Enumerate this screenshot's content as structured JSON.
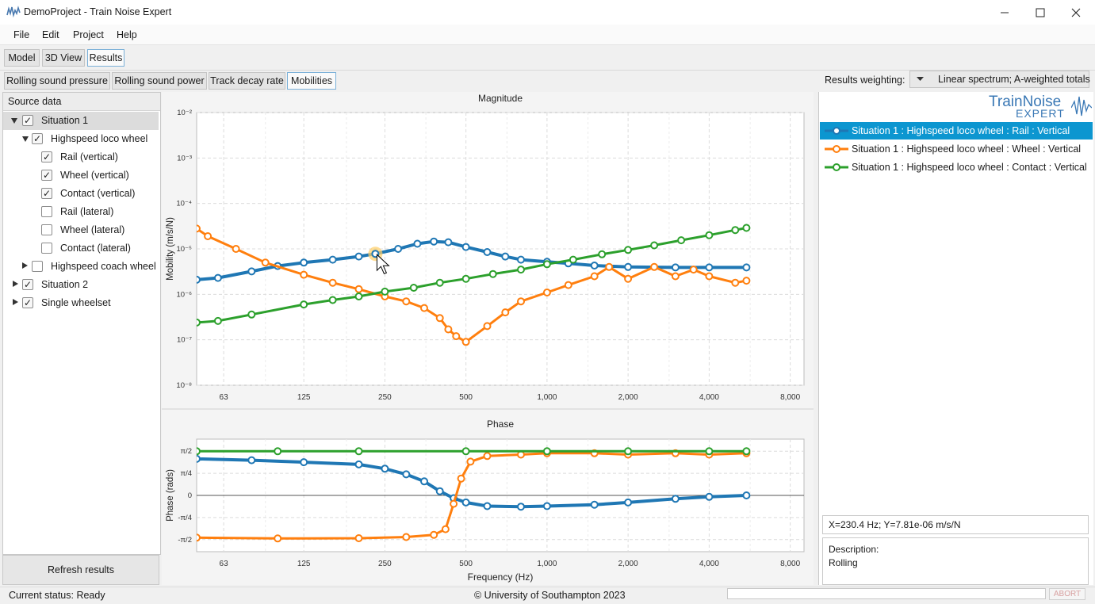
{
  "window": {
    "title": "DemoProject - Train Noise Expert",
    "minimize_icon": "minimize-icon",
    "maximize_icon": "maximize-icon",
    "close_icon": "close-icon"
  },
  "menu": {
    "items": [
      "File",
      "Edit",
      "Project",
      "Help"
    ]
  },
  "main_tabs": [
    {
      "label": "Model"
    },
    {
      "label": "3D View"
    },
    {
      "label": "Results",
      "selected": true
    }
  ],
  "result_tabs": [
    {
      "label": "Rolling sound pressure"
    },
    {
      "label": "Rolling sound power"
    },
    {
      "label": "Track decay rate"
    },
    {
      "label": "Mobilities",
      "selected": true
    }
  ],
  "weighting": {
    "label": "Results weighting:",
    "value": "Linear spectrum; A-weighted totals"
  },
  "source_panel": {
    "header": "Source data",
    "tree": [
      {
        "label": "Situation 1",
        "checked": true,
        "expanded": true,
        "level": 0,
        "selected": true
      },
      {
        "label": "Highspeed loco wheel",
        "checked": true,
        "expanded": true,
        "level": 1
      },
      {
        "label": "Rail (vertical)",
        "checked": true,
        "level": 2
      },
      {
        "label": "Wheel (vertical)",
        "checked": true,
        "level": 2
      },
      {
        "label": "Contact (vertical)",
        "checked": true,
        "level": 2
      },
      {
        "label": "Rail (lateral)",
        "checked": false,
        "level": 2
      },
      {
        "label": "Wheel (lateral)",
        "checked": false,
        "level": 2
      },
      {
        "label": "Contact (lateral)",
        "checked": false,
        "level": 2
      },
      {
        "label": "Highspeed coach wheel",
        "checked": false,
        "expanded": false,
        "level": 1
      },
      {
        "label": "Situation 2",
        "checked": true,
        "expanded": false,
        "level": 0
      },
      {
        "label": "Single wheelset",
        "checked": true,
        "expanded": false,
        "level": 0
      }
    ],
    "refresh_label": "Refresh results"
  },
  "logo": {
    "line1": "TrainNoise",
    "line2": "EXPERT"
  },
  "legend": [
    {
      "label": "Situation 1 : Highspeed loco wheel : Rail : Vertical",
      "color": "#1f77b4",
      "selected": true
    },
    {
      "label": "Situation 1 : Highspeed loco wheel : Wheel : Vertical",
      "color": "#ff7f0e"
    },
    {
      "label": "Situation 1 : Highspeed loco wheel : Contact : Vertical",
      "color": "#2ca02c"
    }
  ],
  "cursor_readout": "X=230.4 Hz;  Y=7.81e-06 m/s/N",
  "description": {
    "label": "Description:",
    "value": "Rolling"
  },
  "status": {
    "text": "Current status: Ready",
    "copyright": "© University of Southampton 2023",
    "abort_label": "ABORT"
  },
  "chart_data": [
    {
      "type": "line",
      "title": "Magnitude",
      "xlabel": "",
      "ylabel": "Mobility (m/s/N)",
      "xscale": "log",
      "yscale": "log",
      "xlim": [
        50,
        9000
      ],
      "ylim": [
        1e-08,
        0.01
      ],
      "x_ticks": [
        63,
        125,
        250,
        500,
        1000,
        2000,
        4000,
        8000
      ],
      "x_tick_labels": [
        "63",
        "125",
        "250",
        "500",
        "1,000",
        "2,000",
        "4,000",
        "8,000"
      ],
      "y_ticks": [
        1e-08,
        1e-07,
        1e-06,
        1e-05,
        0.0001,
        0.001,
        0.01
      ],
      "y_tick_labels": [
        "10⁻⁸",
        "10⁻⁷",
        "10⁻⁶",
        "10⁻⁵",
        "10⁻⁴",
        "10⁻³",
        "10⁻²"
      ],
      "grid": true,
      "series": [
        {
          "name": "Situation 1 : Highspeed loco wheel : Rail : Vertical",
          "color": "#1f77b4",
          "points": [
            [
              50,
              2.1e-06
            ],
            [
              60,
              2.3e-06
            ],
            [
              80,
              3.2e-06
            ],
            [
              100,
              4.2e-06
            ],
            [
              125,
              5e-06
            ],
            [
              160,
              5.8e-06
            ],
            [
              200,
              6.8e-06
            ],
            [
              230,
              7.81e-06
            ],
            [
              280,
              1e-05
            ],
            [
              330,
              1.3e-05
            ],
            [
              380,
              1.45e-05
            ],
            [
              430,
              1.4e-05
            ],
            [
              500,
              1.1e-05
            ],
            [
              600,
              8.5e-06
            ],
            [
              700,
              6.8e-06
            ],
            [
              800,
              5.8e-06
            ],
            [
              1000,
              5.2e-06
            ],
            [
              1200,
              4.8e-06
            ],
            [
              1500,
              4.3e-06
            ],
            [
              2000,
              4e-06
            ],
            [
              3000,
              3.9e-06
            ],
            [
              4000,
              3.9e-06
            ],
            [
              5500,
              3.9e-06
            ]
          ]
        },
        {
          "name": "Situation 1 : Highspeed loco wheel : Wheel : Vertical",
          "color": "#ff7f0e",
          "points": [
            [
              50,
              2.8e-05
            ],
            [
              55,
              1.9e-05
            ],
            [
              70,
              1e-05
            ],
            [
              90,
              5e-06
            ],
            [
              125,
              2.7e-06
            ],
            [
              160,
              1.8e-06
            ],
            [
              200,
              1.3e-06
            ],
            [
              250,
              9e-07
            ],
            [
              300,
              7e-07
            ],
            [
              350,
              5e-07
            ],
            [
              400,
              3e-07
            ],
            [
              430,
              1.7e-07
            ],
            [
              460,
              1.2e-07
            ],
            [
              500,
              9e-08
            ],
            [
              600,
              2e-07
            ],
            [
              700,
              4e-07
            ],
            [
              800,
              7e-07
            ],
            [
              1000,
              1.1e-06
            ],
            [
              1200,
              1.6e-06
            ],
            [
              1500,
              2.5e-06
            ],
            [
              1700,
              4e-06
            ],
            [
              2000,
              2.2e-06
            ],
            [
              2500,
              4e-06
            ],
            [
              3000,
              2.5e-06
            ],
            [
              3500,
              3.5e-06
            ],
            [
              4000,
              2.5e-06
            ],
            [
              5000,
              1.8e-06
            ],
            [
              5500,
              2e-06
            ]
          ]
        },
        {
          "name": "Situation 1 : Highspeed loco wheel : Contact : Vertical",
          "color": "#2ca02c",
          "points": [
            [
              50,
              2.4e-07
            ],
            [
              60,
              2.6e-07
            ],
            [
              80,
              3.6e-07
            ],
            [
              125,
              6e-07
            ],
            [
              160,
              7.5e-07
            ],
            [
              200,
              9e-07
            ],
            [
              250,
              1.15e-06
            ],
            [
              320,
              1.4e-06
            ],
            [
              400,
              1.8e-06
            ],
            [
              500,
              2.2e-06
            ],
            [
              630,
              2.8e-06
            ],
            [
              800,
              3.5e-06
            ],
            [
              1000,
              4.6e-06
            ],
            [
              1250,
              5.8e-06
            ],
            [
              1600,
              7.6e-06
            ],
            [
              2000,
              9.5e-06
            ],
            [
              2500,
              1.2e-05
            ],
            [
              3150,
              1.55e-05
            ],
            [
              4000,
              2e-05
            ],
            [
              5000,
              2.6e-05
            ],
            [
              5500,
              2.9e-05
            ]
          ]
        }
      ]
    },
    {
      "type": "line",
      "title": "Phase",
      "xlabel": "Frequency (Hz)",
      "ylabel": "Phase (rads)",
      "xscale": "log",
      "xlim": [
        50,
        9000
      ],
      "ylim": [
        -2.0,
        2.0
      ],
      "x_ticks": [
        63,
        125,
        250,
        500,
        1000,
        2000,
        4000,
        8000
      ],
      "x_tick_labels": [
        "63",
        "125",
        "250",
        "500",
        "1,000",
        "2,000",
        "4,000",
        "8,000"
      ],
      "y_ticks": [
        -1.5708,
        -0.7854,
        0,
        0.7854,
        1.5708
      ],
      "y_tick_labels": [
        "-π/2",
        "-π/4",
        "0",
        "π/4",
        "π/2"
      ],
      "grid": true,
      "series": [
        {
          "name": "Situation 1 : Highspeed loco wheel : Rail : Vertical",
          "color": "#1f77b4",
          "points": [
            [
              50,
              1.3
            ],
            [
              80,
              1.25
            ],
            [
              125,
              1.18
            ],
            [
              200,
              1.1
            ],
            [
              250,
              0.95
            ],
            [
              300,
              0.75
            ],
            [
              350,
              0.5
            ],
            [
              400,
              0.15
            ],
            [
              450,
              -0.1
            ],
            [
              500,
              -0.25
            ],
            [
              600,
              -0.38
            ],
            [
              800,
              -0.4
            ],
            [
              1000,
              -0.38
            ],
            [
              1500,
              -0.33
            ],
            [
              2000,
              -0.25
            ],
            [
              3000,
              -0.12
            ],
            [
              4000,
              -0.05
            ],
            [
              5500,
              0.0
            ]
          ]
        },
        {
          "name": "Situation 1 : Highspeed loco wheel : Wheel : Vertical",
          "color": "#ff7f0e",
          "points": [
            [
              50,
              -1.5
            ],
            [
              100,
              -1.53
            ],
            [
              200,
              -1.52
            ],
            [
              300,
              -1.48
            ],
            [
              380,
              -1.4
            ],
            [
              420,
              -1.2
            ],
            [
              450,
              -0.3
            ],
            [
              480,
              0.6
            ],
            [
              520,
              1.2
            ],
            [
              600,
              1.4
            ],
            [
              800,
              1.45
            ],
            [
              1000,
              1.5
            ],
            [
              1500,
              1.5
            ],
            [
              2000,
              1.45
            ],
            [
              3000,
              1.5
            ],
            [
              4000,
              1.45
            ],
            [
              5500,
              1.5
            ]
          ]
        },
        {
          "name": "Situation 1 : Highspeed loco wheel : Contact : Vertical",
          "color": "#2ca02c",
          "points": [
            [
              50,
              1.57
            ],
            [
              100,
              1.57
            ],
            [
              200,
              1.57
            ],
            [
              500,
              1.57
            ],
            [
              1000,
              1.57
            ],
            [
              2000,
              1.57
            ],
            [
              4000,
              1.57
            ],
            [
              5500,
              1.57
            ]
          ]
        }
      ]
    }
  ]
}
